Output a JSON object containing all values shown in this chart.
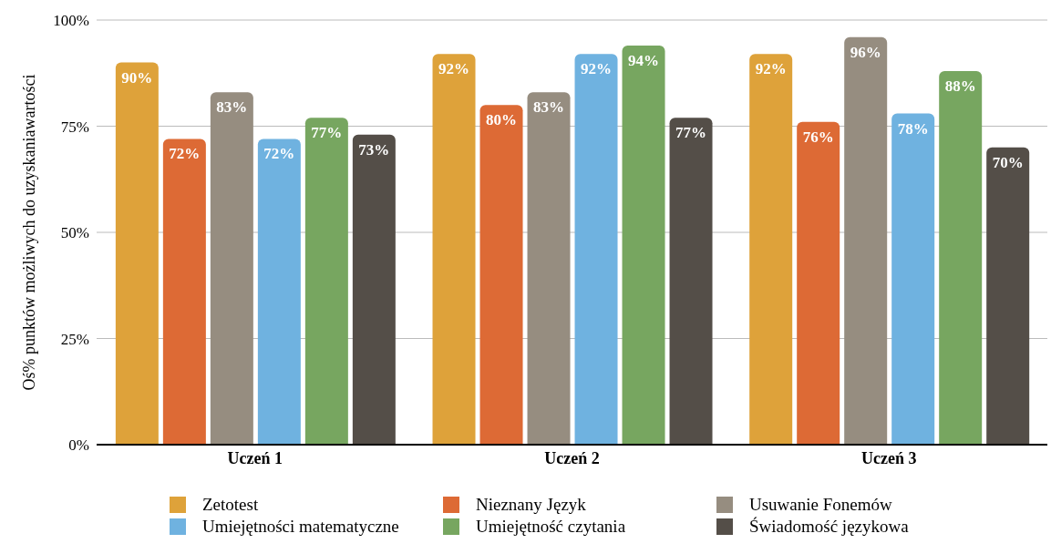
{
  "chart_data": {
    "type": "bar",
    "ylabel": "Oś% punktów możliwych do uzyskaniawartości",
    "categories": [
      "Uczeń 1",
      "Uczeń 2",
      "Uczeń 3"
    ],
    "series": [
      {
        "name": "Zetotest",
        "color": "#dea23a",
        "values": [
          90,
          92,
          92
        ],
        "value_labels": [
          "90%",
          "92%",
          "92%"
        ]
      },
      {
        "name": "Nieznany Język",
        "color": "#dd6a35",
        "values": [
          72,
          80,
          76
        ],
        "value_labels": [
          "72%",
          "80%",
          "76%"
        ]
      },
      {
        "name": "Usuwanie Fonemów",
        "color": "#968d80",
        "values": [
          83,
          83,
          96
        ],
        "value_labels": [
          "83%",
          "83%",
          "96%"
        ]
      },
      {
        "name": "Umiejętności matematyczne",
        "color": "#6fb2e0",
        "values": [
          72,
          92,
          78
        ],
        "value_labels": [
          "72%",
          "92%",
          "78%"
        ]
      },
      {
        "name": "Umiejętność czytania",
        "color": "#77a660",
        "values": [
          77,
          94,
          88
        ],
        "value_labels": [
          "77%",
          "94%",
          "88%"
        ]
      },
      {
        "name": "Świadomość językowa",
        "color": "#544e48",
        "values": [
          73,
          77,
          70
        ],
        "value_labels": [
          "73%",
          "77%",
          "70%"
        ]
      }
    ],
    "ylim": [
      0,
      100
    ],
    "yticks": [
      {
        "value": 0,
        "label": "0%"
      },
      {
        "value": 25,
        "label": "25%"
      },
      {
        "value": 50,
        "label": "50%"
      },
      {
        "value": 75,
        "label": "75%"
      },
      {
        "value": 100,
        "label": "100%"
      }
    ],
    "grid": "y",
    "legend": "bottom"
  }
}
